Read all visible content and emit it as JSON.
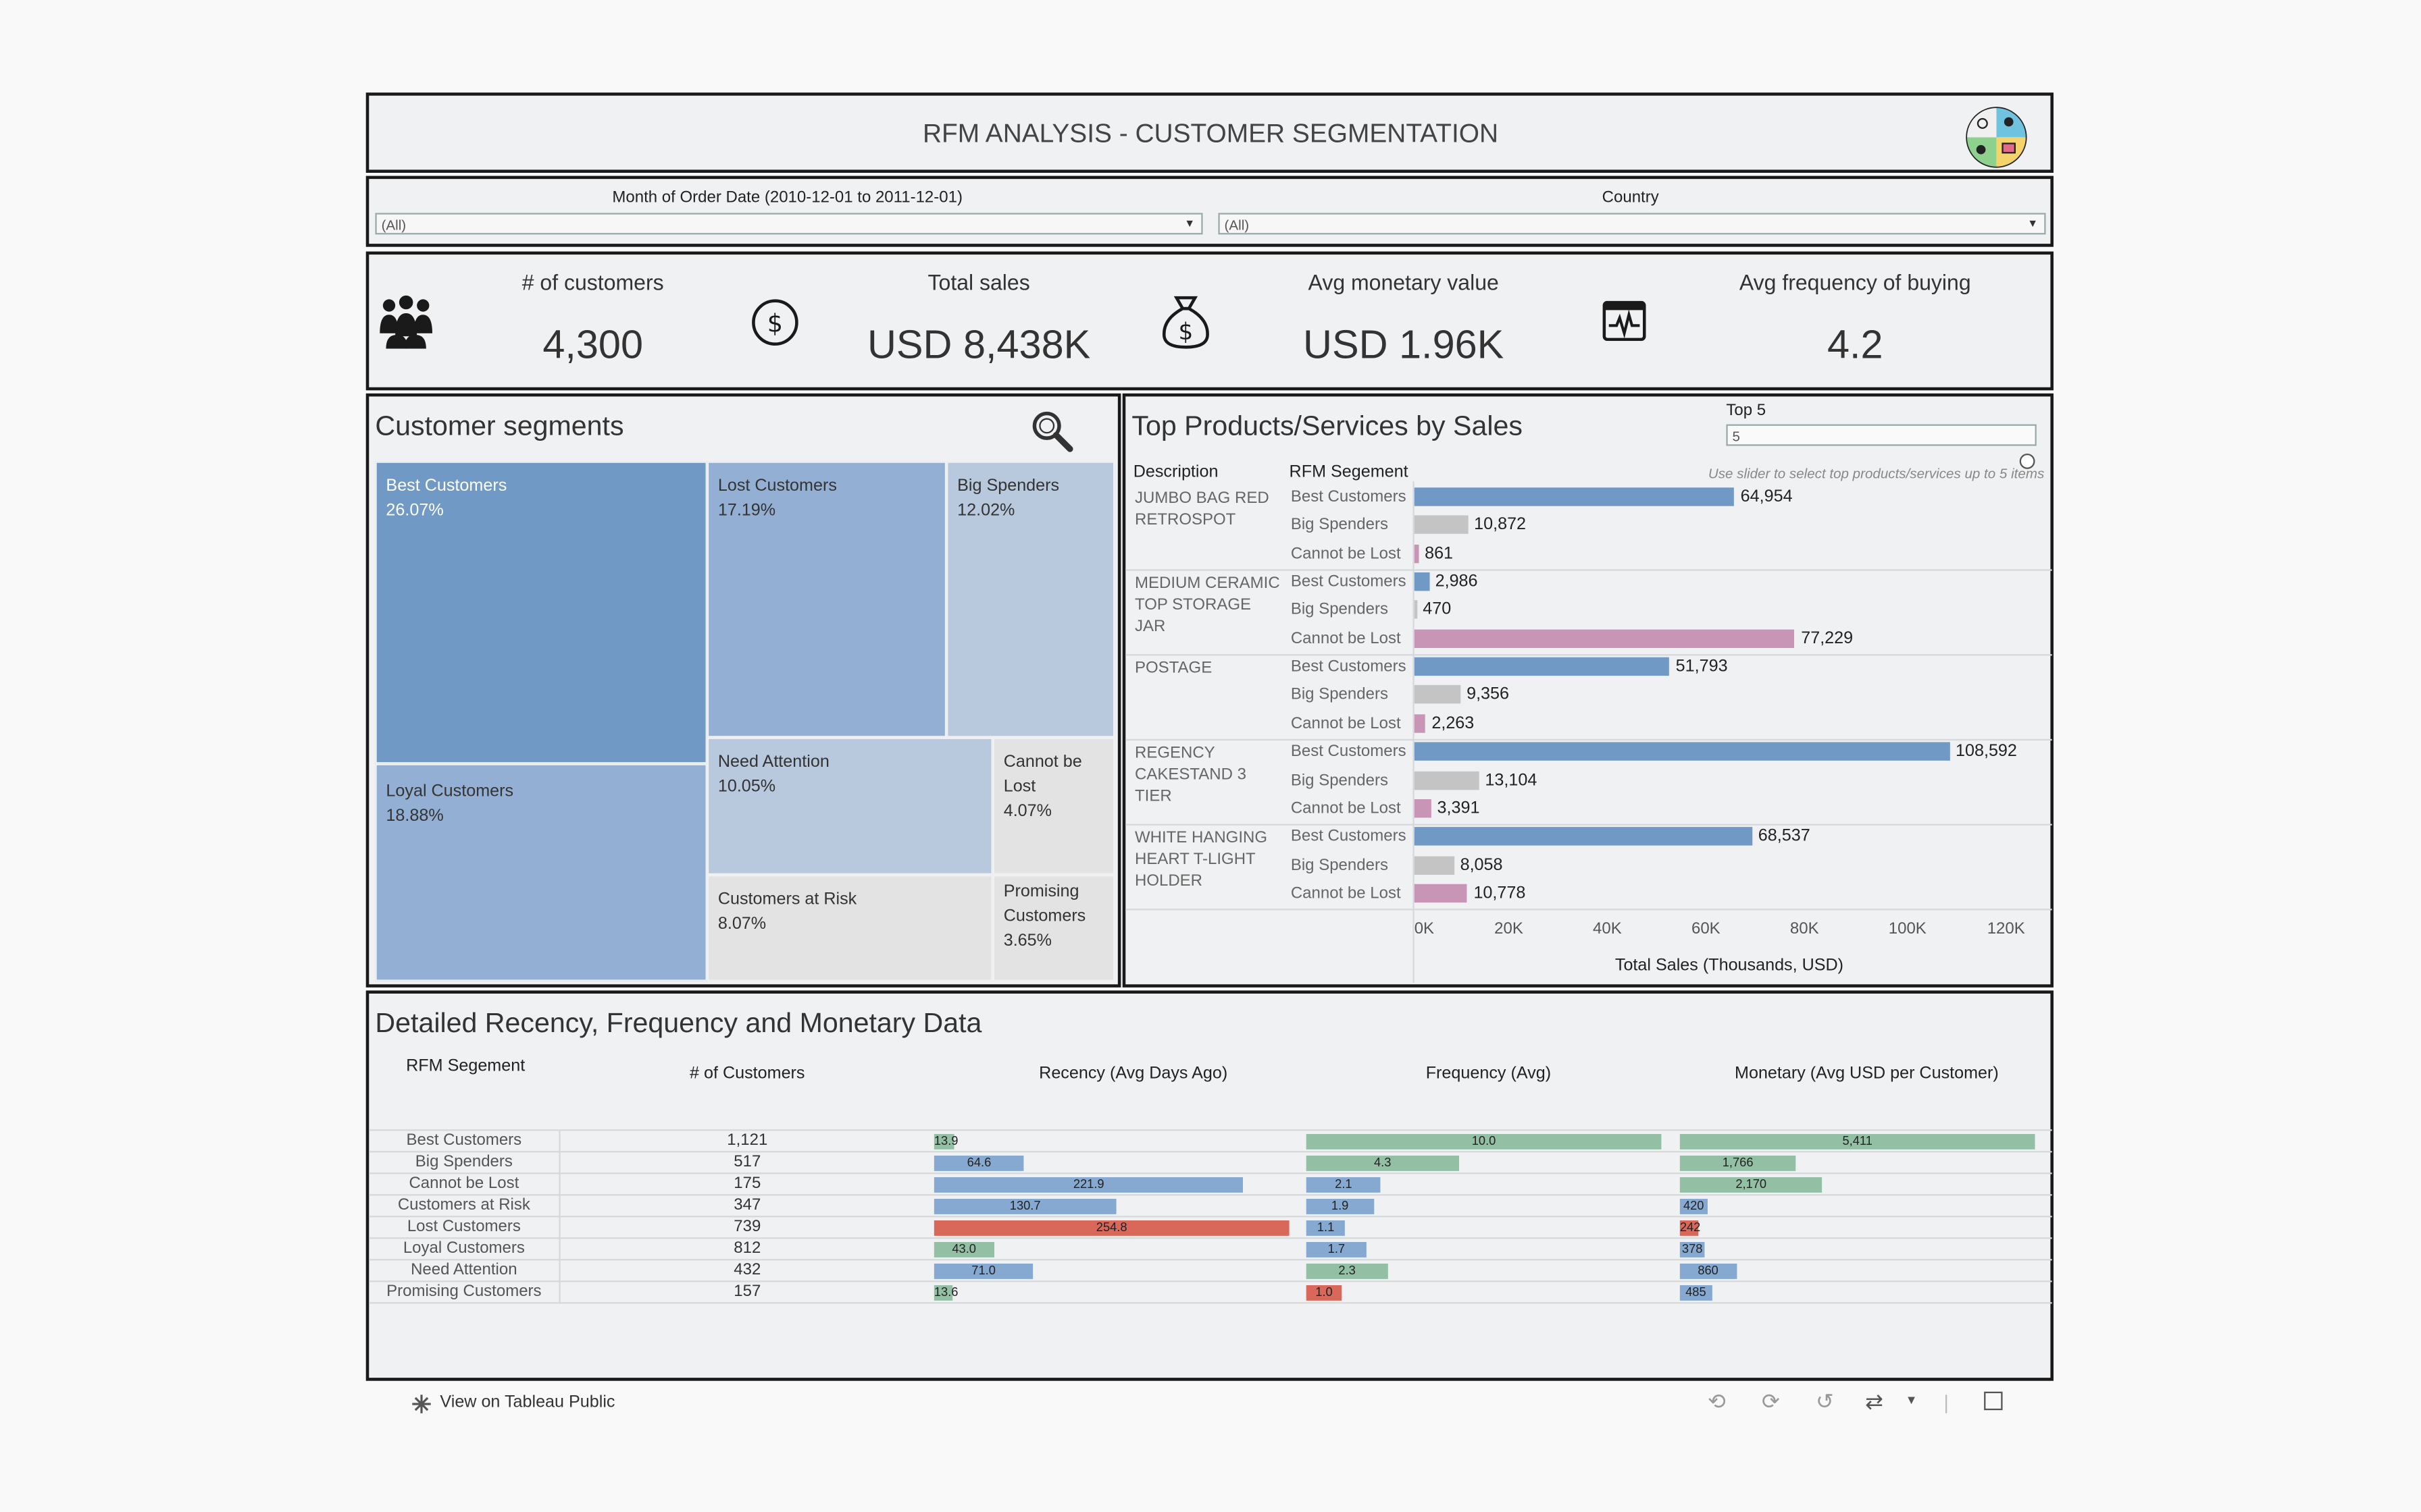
{
  "title": "RFM ANALYSIS - CUSTOMER SEGMENTATION",
  "filters": {
    "month": {
      "label": "Month of Order Date (2010-12-01 to 2011-12-01)",
      "value": "(All)"
    },
    "country": {
      "label": "Country",
      "value": "(All)"
    }
  },
  "kpis": [
    {
      "label": "# of customers",
      "value": "4,300",
      "icon": "people-icon"
    },
    {
      "label": "Total sales",
      "value": "USD 8,438K",
      "icon": "dollar-coin-icon"
    },
    {
      "label": "Avg monetary value",
      "value": "USD 1.96K",
      "icon": "money-bag-icon"
    },
    {
      "label": "Avg frequency of buying",
      "value": "4.2",
      "icon": "activity-monitor-icon"
    }
  ],
  "segments": {
    "title": "Customer segments",
    "items": [
      {
        "name": "Best Customers",
        "pct": "26.07%",
        "color": "#7199c6"
      },
      {
        "name": "Lost Customers",
        "pct": "17.19%",
        "color": "#93b0d4"
      },
      {
        "name": "Big Spenders",
        "pct": "12.02%",
        "color": "#b8c8dd"
      },
      {
        "name": "Loyal Customers",
        "pct": "18.88%",
        "color": "#93b0d4"
      },
      {
        "name": "Need Attention",
        "pct": "10.05%",
        "color": "#b8c8dd"
      },
      {
        "name": "Cannot be Lost",
        "pct": "4.07%",
        "color": "#e3e3e3"
      },
      {
        "name": "Customers at Risk",
        "pct": "8.07%",
        "color": "#e3e3e3"
      },
      {
        "name": "Promising Customers",
        "pct": "3.65%",
        "color": "#e3e3e3"
      }
    ]
  },
  "top_products": {
    "title": "Top Products/Services by Sales",
    "top_label": "Top 5",
    "top_value": "5",
    "hint": "Use slider to select top products/services up to 5 items",
    "col_desc": "Description",
    "col_seg": "RFM Segement",
    "xlabel": "Total Sales (Thousands, USD)",
    "ticks": [
      "0K",
      "20K",
      "40K",
      "60K",
      "80K",
      "100K",
      "120K"
    ],
    "colors": {
      "Best Customers": "#7199c6",
      "Big Spenders": "#c4c4c4",
      "Cannot be Lost": "#c895b7"
    }
  },
  "chart_data": {
    "type": "bar",
    "orientation": "horizontal",
    "xlim": [
      0,
      120000
    ],
    "xlabel": "Total Sales (Thousands, USD)",
    "groups": [
      {
        "description": "JUMBO BAG RED RETROSPOT",
        "rows": [
          {
            "segment": "Best Customers",
            "value": 64954,
            "label": "64,954"
          },
          {
            "segment": "Big Spenders",
            "value": 10872,
            "label": "10,872"
          },
          {
            "segment": "Cannot be Lost",
            "value": 861,
            "label": "861"
          }
        ]
      },
      {
        "description": "MEDIUM CERAMIC TOP STORAGE JAR",
        "rows": [
          {
            "segment": "Best Customers",
            "value": 2986,
            "label": "2,986"
          },
          {
            "segment": "Big Spenders",
            "value": 470,
            "label": "470"
          },
          {
            "segment": "Cannot be Lost",
            "value": 77229,
            "label": "77,229"
          }
        ]
      },
      {
        "description": "POSTAGE",
        "rows": [
          {
            "segment": "Best Customers",
            "value": 51793,
            "label": "51,793"
          },
          {
            "segment": "Big Spenders",
            "value": 9356,
            "label": "9,356"
          },
          {
            "segment": "Cannot be Lost",
            "value": 2263,
            "label": "2,263"
          }
        ]
      },
      {
        "description": "REGENCY CAKESTAND 3 TIER",
        "rows": [
          {
            "segment": "Best Customers",
            "value": 108592,
            "label": "108,592"
          },
          {
            "segment": "Big Spenders",
            "value": 13104,
            "label": "13,104"
          },
          {
            "segment": "Cannot be Lost",
            "value": 3391,
            "label": "3,391"
          }
        ]
      },
      {
        "description": "WHITE HANGING HEART T-LIGHT HOLDER",
        "rows": [
          {
            "segment": "Best Customers",
            "value": 68537,
            "label": "68,537"
          },
          {
            "segment": "Big Spenders",
            "value": 8058,
            "label": "8,058"
          },
          {
            "segment": "Cannot be Lost",
            "value": 10778,
            "label": "10,778"
          }
        ]
      }
    ]
  },
  "rfm": {
    "title": "Detailed Recency, Frequency and Monetary Data",
    "headers": {
      "segment": "RFM Segement",
      "count": "# of Customers",
      "recency": "Recency (Avg Days Ago)",
      "frequency": "Frequency (Avg)",
      "monetary": "Monetary (Avg USD per Customer)"
    },
    "max": {
      "recency": 254.8,
      "frequency": 10.0,
      "monetary": 5411
    },
    "rows": [
      {
        "segment": "Best Customers",
        "count": "1,121",
        "recency": 13.9,
        "recency_label": "13.9",
        "recency_color": "#93c0a4",
        "frequency": 10.0,
        "frequency_label": "10.0",
        "frequency_color": "#93c0a4",
        "monetary": 5411,
        "monetary_label": "5,411",
        "monetary_color": "#93c0a4"
      },
      {
        "segment": "Big Spenders",
        "count": "517",
        "recency": 64.6,
        "recency_label": "64.6",
        "recency_color": "#86a9d1",
        "frequency": 4.3,
        "frequency_label": "4.3",
        "frequency_color": "#93c0a4",
        "monetary": 1766,
        "monetary_label": "1,766",
        "monetary_color": "#93c0a4"
      },
      {
        "segment": "Cannot be Lost",
        "count": "175",
        "recency": 221.9,
        "recency_label": "221.9",
        "recency_color": "#86a9d1",
        "frequency": 2.1,
        "frequency_label": "2.1",
        "frequency_color": "#86a9d1",
        "monetary": 2170,
        "monetary_label": "2,170",
        "monetary_color": "#93c0a4"
      },
      {
        "segment": "Customers at Risk",
        "count": "347",
        "recency": 130.7,
        "recency_label": "130.7",
        "recency_color": "#86a9d1",
        "frequency": 1.9,
        "frequency_label": "1.9",
        "frequency_color": "#86a9d1",
        "monetary": 420,
        "monetary_label": "420",
        "monetary_color": "#86a9d1"
      },
      {
        "segment": "Lost Customers",
        "count": "739",
        "recency": 254.8,
        "recency_label": "254.8",
        "recency_color": "#d9675a",
        "frequency": 1.1,
        "frequency_label": "1.1",
        "frequency_color": "#86a9d1",
        "monetary": 242,
        "monetary_label": "242",
        "monetary_color": "#d9675a"
      },
      {
        "segment": "Loyal Customers",
        "count": "812",
        "recency": 43.0,
        "recency_label": "43.0",
        "recency_color": "#93c0a4",
        "frequency": 1.7,
        "frequency_label": "1.7",
        "frequency_color": "#86a9d1",
        "monetary": 378,
        "monetary_label": "378",
        "monetary_color": "#86a9d1"
      },
      {
        "segment": "Need Attention",
        "count": "432",
        "recency": 71.0,
        "recency_label": "71.0",
        "recency_color": "#86a9d1",
        "frequency": 2.3,
        "frequency_label": "2.3",
        "frequency_color": "#93c0a4",
        "monetary": 860,
        "monetary_label": "860",
        "monetary_color": "#86a9d1"
      },
      {
        "segment": "Promising Customers",
        "count": "157",
        "recency": 13.6,
        "recency_label": "13.6",
        "recency_color": "#93c0a4",
        "frequency": 1.0,
        "frequency_label": "1.0",
        "frequency_color": "#d9675a",
        "monetary": 485,
        "monetary_label": "485",
        "monetary_color": "#86a9d1"
      }
    ]
  },
  "footer": {
    "view_label": "View on Tableau Public"
  }
}
